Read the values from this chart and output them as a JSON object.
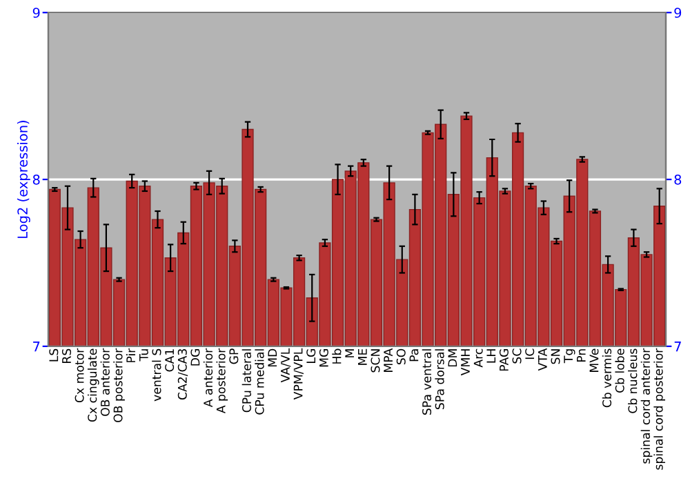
{
  "chart_data": {
    "type": "bar",
    "ylabel": "Log2 (expression)",
    "categories": [
      "LS",
      "RS",
      "Cx motor",
      "Cx cingulate",
      "OB anterior",
      "OB posterior",
      "Pir",
      "Tu",
      "ventral S",
      "CA1",
      "CA2/CA3",
      "DG",
      "A anterior",
      "A posterior",
      "GP",
      "CPu lateral",
      "CPu medial",
      "MD",
      "VA/VL",
      "VPM/VPL",
      "LG",
      "MG",
      "Hb",
      "M",
      "ME",
      "SCN",
      "MPA",
      "SO",
      "Pa",
      "SPa ventral",
      "SPa dorsal",
      "DM",
      "VMH",
      "Arc",
      "LH",
      "PAG",
      "SC",
      "IC",
      "VTA",
      "SN",
      "Tg",
      "Pn",
      "MVe",
      "Cb vermis",
      "Cb lobe",
      "Cb nucleus",
      "spinal cord anterior",
      "spinal cord posterior"
    ],
    "values": [
      7.94,
      7.83,
      7.64,
      7.95,
      7.59,
      7.4,
      7.99,
      7.96,
      7.76,
      7.53,
      7.68,
      7.96,
      7.98,
      7.96,
      7.6,
      8.3,
      7.94,
      7.4,
      7.35,
      7.53,
      7.29,
      7.62,
      8.0,
      8.05,
      8.1,
      7.76,
      7.98,
      7.52,
      7.82,
      8.28,
      8.33,
      7.91,
      8.38,
      7.89,
      8.13,
      7.93,
      8.28,
      7.96,
      7.83,
      7.63,
      7.9,
      8.12,
      7.81,
      7.49,
      7.34,
      7.65,
      7.55,
      7.84
    ],
    "errors": [
      0.01,
      0.13,
      0.05,
      0.055,
      0.14,
      0.01,
      0.04,
      0.03,
      0.05,
      0.08,
      0.065,
      0.02,
      0.07,
      0.045,
      0.035,
      0.045,
      0.015,
      0.01,
      0.005,
      0.015,
      0.14,
      0.02,
      0.09,
      0.03,
      0.02,
      0.01,
      0.1,
      0.08,
      0.09,
      0.01,
      0.085,
      0.13,
      0.02,
      0.035,
      0.11,
      0.015,
      0.055,
      0.015,
      0.04,
      0.015,
      0.095,
      0.015,
      0.01,
      0.05,
      0.005,
      0.05,
      0.015,
      0.105
    ],
    "color": "#b83232",
    "ylim": [
      7,
      9
    ],
    "yticks": [
      7,
      8,
      9
    ],
    "y2lim": [
      7,
      9
    ],
    "y2ticks": [
      7,
      8,
      9
    ],
    "grid": "y"
  }
}
